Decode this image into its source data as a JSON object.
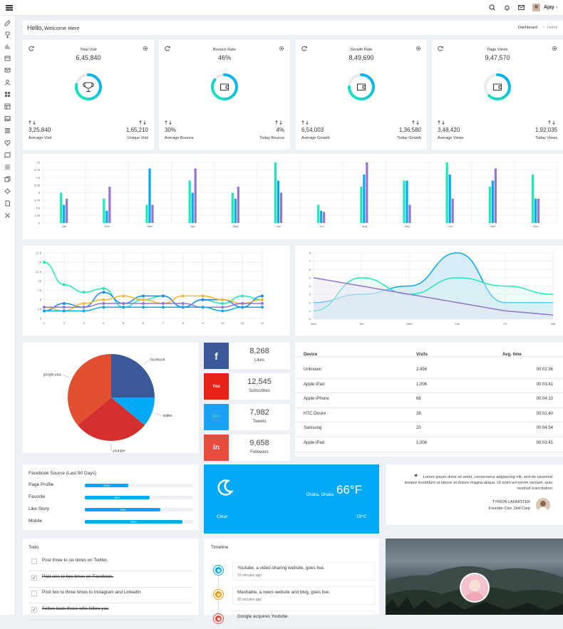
{
  "topbar": {
    "user_name": "Ajay"
  },
  "header": {
    "greeting": "Hello,",
    "welcome": "Welcome Here",
    "breadcrumb_parent": "Dashboard",
    "breadcrumb_sep": "/",
    "breadcrumb_current": "Home"
  },
  "stats": [
    {
      "title": "Total Visit",
      "value": "6,45,840",
      "icon": "trophy-icon",
      "progress": 0.78,
      "left_value": "3,25,840",
      "left_label": "Average Visit",
      "right_value": "1,65,210",
      "right_label": "Unique Visit"
    },
    {
      "title": "Bounce Rate",
      "value": "46%",
      "icon": "wallet-icon",
      "progress": 0.85,
      "left_value": "30%",
      "left_label": "Average Bounce",
      "right_value": "4%",
      "right_label": "Today Bounce"
    },
    {
      "title": "Growth Rate",
      "value": "8,49,690",
      "icon": "wallet-icon",
      "progress": 0.75,
      "left_value": "6,54,003",
      "left_label": "Average Growth",
      "right_value": "1,36,580",
      "right_label": "Today Growth"
    },
    {
      "title": "Page Views",
      "value": "9,47,570",
      "icon": "wallet-icon",
      "progress": 0.62,
      "left_value": "3,48,420",
      "left_label": "Average Views",
      "right_value": "1,92,035",
      "right_label": "Today Views"
    }
  ],
  "colors": {
    "teal": "#1de9b6",
    "blue": "#1e88e5",
    "purple": "#9575cd",
    "sky": "#03a9f4",
    "facebook": "#3b5998",
    "youtube": "#e62117",
    "twitter": "#1da1f2",
    "linkedin": "#e74c3c",
    "pie_red": "#d32f2f",
    "pie_orange": "#e25032"
  },
  "chart_data": [
    {
      "type": "bar",
      "categories": [
        "Jan",
        "Feb",
        "Mar",
        "Apr",
        "May",
        "Jun",
        "Jul",
        "Aug",
        "Sep",
        "Oct",
        "Nov",
        "Dec"
      ],
      "series": [
        {
          "values": [
            5,
            4,
            3,
            7,
            5,
            10,
            3,
            6,
            7,
            10,
            6,
            8
          ]
        },
        {
          "values": [
            3,
            2,
            9,
            5,
            4,
            7,
            2,
            8,
            7,
            8,
            7,
            4
          ]
        },
        {
          "values": [
            4,
            6,
            3,
            9,
            6,
            5,
            1.8,
            10,
            3,
            4,
            9,
            4
          ]
        }
      ],
      "ylim": [
        0,
        10
      ],
      "yticks": [
        "0",
        "1.25",
        "2.5",
        "3.75",
        "5",
        "6.25",
        "7.5",
        "8.75",
        "10"
      ]
    },
    {
      "type": "line",
      "x": [
        1,
        2,
        3,
        4,
        5,
        6,
        7,
        8,
        9,
        10,
        11,
        12
      ],
      "series": [
        {
          "values": [
            15,
            9,
            7,
            8,
            3,
            5,
            6,
            3,
            5,
            4,
            6,
            5
          ]
        },
        {
          "values": [
            2,
            4,
            3,
            7,
            4,
            6,
            6,
            3,
            5,
            5,
            3,
            6
          ]
        },
        {
          "values": [
            3,
            2,
            4,
            5,
            6,
            5,
            4,
            6,
            6,
            5,
            4,
            5
          ]
        },
        {
          "values": [
            3,
            3,
            3,
            4,
            4,
            4,
            4,
            4,
            3,
            3,
            4,
            4
          ]
        },
        {
          "values": [
            2,
            2,
            2,
            3,
            3,
            3,
            3,
            3,
            3,
            2,
            3,
            3
          ]
        }
      ],
      "ylim": [
        0,
        17.5
      ],
      "yticks": [
        "0",
        "2.5",
        "5",
        "7.5",
        "10",
        "12.5",
        "15",
        "17.5"
      ]
    },
    {
      "type": "area",
      "categories": [
        "Mon",
        "Tue",
        "Wed",
        "Thu",
        "Fri",
        "Sat"
      ],
      "series": [
        {
          "values": [
            2,
            3,
            4,
            8,
            2,
            2
          ]
        },
        {
          "values": [
            1,
            5,
            3,
            5,
            4,
            3
          ]
        },
        {
          "values": [
            5,
            4,
            3,
            2,
            1,
            0.5
          ]
        }
      ],
      "ylim": [
        0,
        8
      ],
      "yticks": [
        "0",
        "1",
        "2",
        "3",
        "4",
        "5",
        "6",
        "7",
        "8"
      ]
    },
    {
      "type": "pie",
      "categories": [
        "facebook",
        "twitter",
        "youtube",
        "google plus"
      ],
      "values": [
        25,
        11,
        28,
        36
      ]
    }
  ],
  "social": [
    {
      "icon": "facebook-icon",
      "glyph": "f",
      "value": "8,268",
      "label": "Likes"
    },
    {
      "icon": "youtube-icon",
      "glyph": "You",
      "value": "12,545",
      "label": "Subscribes"
    },
    {
      "icon": "twitter-icon",
      "glyph": "🐦",
      "value": "7,982",
      "label": "Tweets"
    },
    {
      "icon": "linkedin-icon",
      "glyph": "in",
      "value": "9,658",
      "label": "Followers"
    }
  ],
  "devices": {
    "headers": [
      "Device",
      "Visits",
      "Avg. time"
    ],
    "rows": [
      [
        "Unknown",
        "2,456",
        "00:02:36"
      ],
      [
        "Apple iPad",
        "1,006",
        "00:03:41"
      ],
      [
        "Apple iPhone",
        "68",
        "00:04:10"
      ],
      [
        "HTC Desire",
        "38",
        "00:01:40"
      ],
      [
        "Samsung",
        "20",
        "00:04:54"
      ],
      [
        "Apple iPad",
        "1,006",
        "00:03:41"
      ]
    ]
  },
  "fb_source": {
    "title": "Facebook Source (Last 90 Days)",
    "rows": [
      {
        "label": "Page Profile",
        "value": 0.4,
        "text": "40%"
      },
      {
        "label": "Favorite",
        "value": 0.6,
        "text": "60%"
      },
      {
        "label": "Like Story",
        "value": 0.7,
        "text": "70%"
      },
      {
        "label": "Mobile",
        "value": 0.9,
        "text": "90%"
      }
    ]
  },
  "weather": {
    "location": "Dhaka, Dhaka",
    "temp": "66°F",
    "condition": "Clear",
    "low": "19°C"
  },
  "quote": {
    "text": "Lorem ipsum dolor sit amet, consectetur adipisicing elit, sed do eiusmod tempor incididunt ut labore et dolore magna aliqua. Ut enim ad minim veniam, quis nostrud exercitation",
    "author": "TYRION LANNISTER",
    "role": "Founder-Ceo. Dell Corp"
  },
  "todo": {
    "title": "Todo",
    "items": [
      {
        "text": "Post three to six times on Twitter.",
        "done": false
      },
      {
        "text": "Post one to two times on Facebook.",
        "done": true
      },
      {
        "text": "Post two to three times to Instagram and LinkedIn",
        "done": false
      },
      {
        "text": "Follow back those who follow you",
        "done": true
      }
    ]
  },
  "timeline": {
    "title": "Timeline",
    "items": [
      {
        "title": "Youtube, a video-sharing website, goes live.",
        "time": "10 minutes ago",
        "color": "#03a9f4"
      },
      {
        "title": "Mashable, a news website and blog, goes live.",
        "time": "20 minutes ago",
        "color": "#ff9800"
      },
      {
        "title": "Google acquires Youtube.",
        "time": "",
        "color": "#f44336"
      }
    ]
  }
}
